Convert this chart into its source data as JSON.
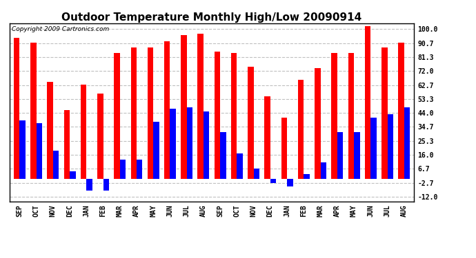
{
  "title": "Outdoor Temperature Monthly High/Low 20090914",
  "copyright": "Copyright 2009 Cartronics.com",
  "months": [
    "SEP",
    "OCT",
    "NOV",
    "DEC",
    "JAN",
    "FEB",
    "MAR",
    "APR",
    "MAY",
    "JUN",
    "JUL",
    "AUG",
    "SEP",
    "OCT",
    "NOV",
    "DEC",
    "JAN",
    "FEB",
    "MAR",
    "APR",
    "MAY",
    "JUN",
    "JUL",
    "AUG"
  ],
  "highs": [
    94,
    91,
    65,
    46,
    63,
    57,
    84,
    88,
    88,
    92,
    96,
    97,
    85,
    84,
    75,
    55,
    41,
    66,
    74,
    84,
    84,
    102,
    88,
    91
  ],
  "lows": [
    39,
    37,
    19,
    5,
    -8,
    -8,
    13,
    13,
    38,
    47,
    48,
    45,
    31,
    17,
    7,
    -3,
    -5,
    3,
    11,
    31,
    31,
    41,
    43,
    48
  ],
  "bar_color_high": "#ff0000",
  "bar_color_low": "#0000ff",
  "background_color": "#ffffff",
  "grid_color": "#c0c0c0",
  "yticks": [
    -12.0,
    -2.7,
    6.7,
    16.0,
    25.3,
    34.7,
    44.0,
    53.3,
    62.7,
    72.0,
    81.3,
    90.7,
    100.0
  ],
  "ylim": [
    -15,
    104
  ],
  "title_fontsize": 11,
  "axis_label_fontsize": 7,
  "copyright_fontsize": 6.5,
  "bar_width": 0.35,
  "figsize": [
    6.9,
    3.75
  ],
  "dpi": 100
}
